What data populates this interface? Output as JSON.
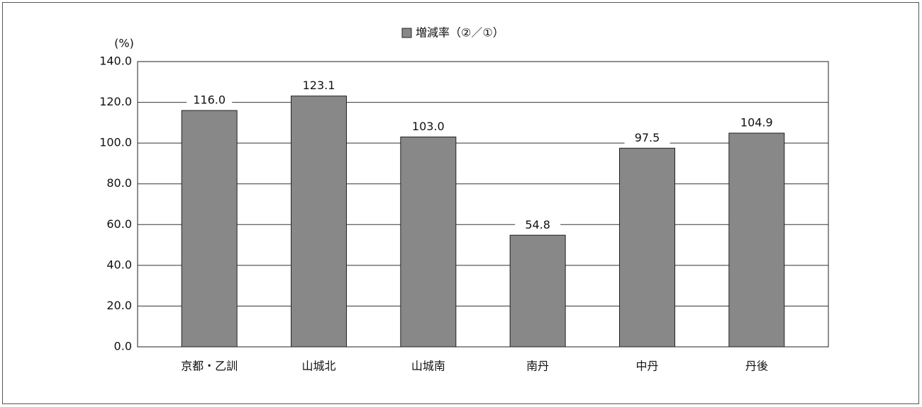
{
  "chart_data": {
    "type": "bar",
    "y_label": "(%)",
    "categories": [
      "京都・乙訓",
      "山城北",
      "山城南",
      "南丹",
      "中丹",
      "丹後"
    ],
    "series": [
      {
        "name": "増減率（②／①）",
        "color": "#888888",
        "values": [
          116.0,
          123.1,
          103.0,
          54.8,
          97.5,
          104.9
        ],
        "value_labels": [
          "116.0",
          "123.1",
          "103.0",
          "54.8",
          "97.5",
          "104.9"
        ]
      }
    ],
    "ylim": [
      0,
      140
    ],
    "yticks": [
      {
        "value": 0,
        "label": "0.0"
      },
      {
        "value": 20,
        "label": "20.0"
      },
      {
        "value": 40,
        "label": "40.0"
      },
      {
        "value": 60,
        "label": "60.0"
      },
      {
        "value": 80,
        "label": "80.0"
      },
      {
        "value": 100,
        "label": "100.0"
      },
      {
        "value": 120,
        "label": "120.0"
      },
      {
        "value": 140,
        "label": "140.0"
      }
    ],
    "grid": true,
    "legend": "top"
  }
}
